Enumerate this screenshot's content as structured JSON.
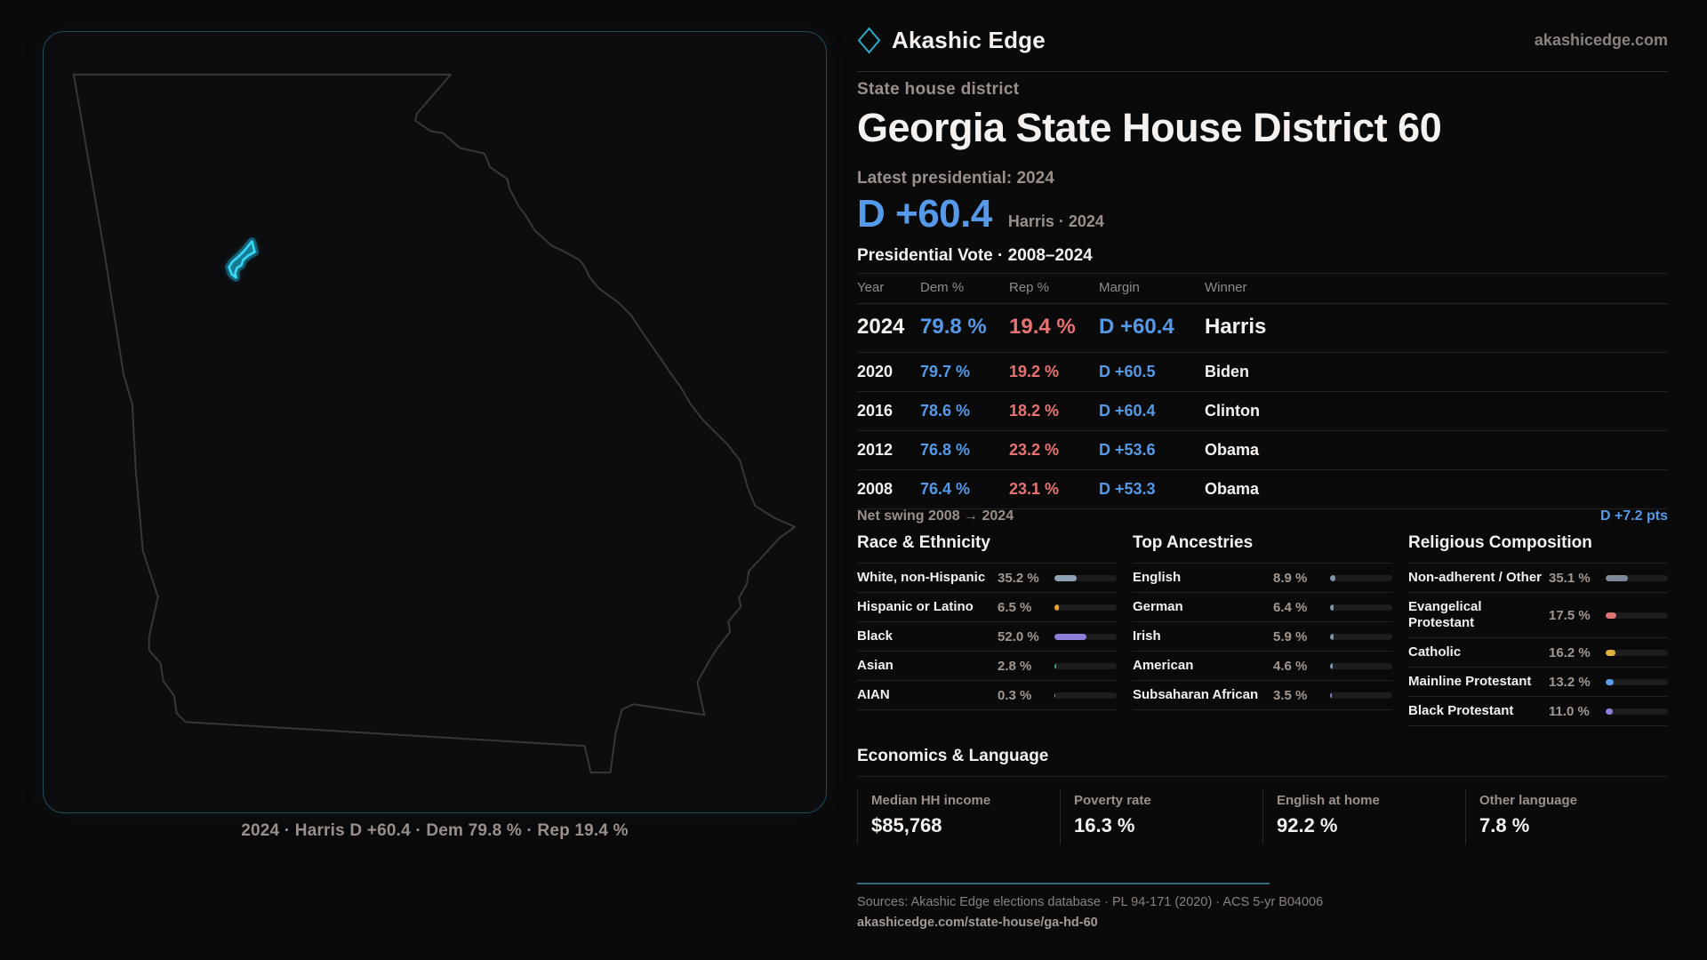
{
  "brand": {
    "name": "Akashic Edge",
    "site": "akashicedge.com"
  },
  "header": {
    "kicker": "State house district",
    "title": "Georgia State House District 60"
  },
  "hero": {
    "label": "Latest presidential: 2024",
    "margin": "D +60.4",
    "detail": "Harris · 2024"
  },
  "table": {
    "title": "Presidential Vote · 2008–2024",
    "columns": {
      "year": "Year",
      "dem": "Dem %",
      "rep": "Rep %",
      "margin": "Margin",
      "winner": "Winner"
    },
    "rows": [
      {
        "year": "2024",
        "dem": "79.8 %",
        "rep": "19.4 %",
        "margin": "D +60.4",
        "winner": "Harris"
      },
      {
        "year": "2020",
        "dem": "79.7 %",
        "rep": "19.2 %",
        "margin": "D +60.5",
        "winner": "Biden"
      },
      {
        "year": "2016",
        "dem": "78.6 %",
        "rep": "18.2 %",
        "margin": "D +60.4",
        "winner": "Clinton"
      },
      {
        "year": "2012",
        "dem": "76.8 %",
        "rep": "23.2 %",
        "margin": "D +53.6",
        "winner": "Obama"
      },
      {
        "year": "2008",
        "dem": "76.4 %",
        "rep": "23.1 %",
        "margin": "D +53.3",
        "winner": "Obama"
      }
    ],
    "net_swing_label": "Net swing 2008 → 2024",
    "net_swing_value": "D +7.2 pts"
  },
  "demographics": {
    "race": {
      "title": "Race & Ethnicity",
      "rows": [
        {
          "label": "White, non-Hispanic",
          "value": "35.2 %",
          "pct": 35.2,
          "color": "#8fa3b5"
        },
        {
          "label": "Hispanic or Latino",
          "value": "6.5 %",
          "pct": 6.5,
          "color": "#e3a13c"
        },
        {
          "label": "Black",
          "value": "52.0 %",
          "pct": 52.0,
          "color": "#8b7fd9"
        },
        {
          "label": "Asian",
          "value": "2.8 %",
          "pct": 2.8,
          "color": "#2fae7d"
        },
        {
          "label": "AIAN",
          "value": "0.3 %",
          "pct": 0.3,
          "color": "#8fa3b5"
        }
      ]
    },
    "ancestry": {
      "title": "Top Ancestries",
      "rows": [
        {
          "label": "English",
          "value": "8.9 %",
          "pct": 8.9,
          "color": "#7e95ad"
        },
        {
          "label": "German",
          "value": "6.4 %",
          "pct": 6.4,
          "color": "#7e95ad"
        },
        {
          "label": "Irish",
          "value": "5.9 %",
          "pct": 5.9,
          "color": "#7e95ad"
        },
        {
          "label": "American",
          "value": "4.6 %",
          "pct": 4.6,
          "color": "#7e95ad"
        },
        {
          "label": "Subsaharan African",
          "value": "3.5 %",
          "pct": 3.5,
          "color": "#8b7fd9"
        }
      ]
    },
    "religion": {
      "title": "Religious Composition",
      "rows": [
        {
          "label": "Non-adherent / Other",
          "value": "35.1 %",
          "pct": 35.1,
          "color": "#7e8a99"
        },
        {
          "label": "Evangelical Protestant",
          "value": "17.5 %",
          "pct": 17.5,
          "color": "#e07575"
        },
        {
          "label": "Catholic",
          "value": "16.2 %",
          "pct": 16.2,
          "color": "#e0b23d"
        },
        {
          "label": "Mainline Protestant",
          "value": "13.2 %",
          "pct": 13.2,
          "color": "#5b9ce4"
        },
        {
          "label": "Black Protestant",
          "value": "11.0 %",
          "pct": 11.0,
          "color": "#8b7fd9"
        }
      ]
    }
  },
  "economics": {
    "title": "Economics & Language",
    "stats": [
      {
        "label": "Median HH income",
        "value": "$85,768"
      },
      {
        "label": "Poverty rate",
        "value": "16.3 %"
      },
      {
        "label": "English at home",
        "value": "92.2 %"
      },
      {
        "label": "Other language",
        "value": "7.8 %"
      }
    ]
  },
  "footer": {
    "sources": "Sources: Akashic Edge elections database · PL 94-171 (2020) · ACS 5-yr B04006",
    "url": "akashicedge.com/state-house/ga-hd-60"
  },
  "map": {
    "caption": "2024 · Harris D +60.4 · Dem 79.8 % · Rep 19.4 %"
  },
  "colors": {
    "bg": "#0a0a0b",
    "panel-bg": "#0d0d0f",
    "panel-border": "#1e4d5a",
    "text": "#f4f1ee",
    "muted": "#9a8f89",
    "muted-2": "#8a817c",
    "dem-blue": "#5599e8",
    "rep-red": "#e87272",
    "district-cyan": "#38d9f5",
    "hairline": "#222226",
    "teal-line": "#2d6b7d",
    "outline-gray": "#37373b",
    "track": "#1d1d20"
  }
}
